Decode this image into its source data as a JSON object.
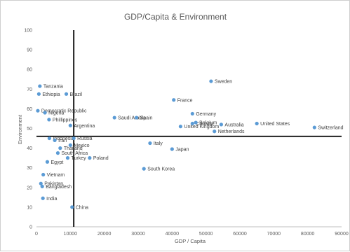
{
  "chart_data": {
    "type": "scatter",
    "title": "GDP/Capita & Environment",
    "xlabel": "GDP / Capita",
    "ylabel": "Environment",
    "xlim": [
      0,
      90000
    ],
    "ylim": [
      0,
      100
    ],
    "xticks": [
      "0",
      "10000",
      "20000",
      "30000",
      "40000",
      "50000",
      "60000",
      "70000",
      "80000",
      "90000"
    ],
    "yticks": [
      "0",
      "10",
      "20",
      "30",
      "40",
      "50",
      "60",
      "70",
      "80",
      "90",
      "100"
    ],
    "reference_lines": {
      "x": 11000,
      "y": 46
    },
    "grid": false,
    "marker_color": "#5b9bd5",
    "line_color": "#000000",
    "points": [
      {
        "label": "Tanzania",
        "x": 1000,
        "y": 71.5
      },
      {
        "label": "Ethiopia",
        "x": 700,
        "y": 67.5
      },
      {
        "label": "Brazil",
        "x": 8800,
        "y": 67.5
      },
      {
        "label": "Democratic Republic",
        "x": 400,
        "y": 59
      },
      {
        "label": "Nigeria",
        "x": 2500,
        "y": 58
      },
      {
        "label": "Phillippines",
        "x": 3700,
        "y": 54.5
      },
      {
        "label": "Argentina",
        "x": 10000,
        "y": 51.5
      },
      {
        "label": "Indonesia",
        "x": 3800,
        "y": 45
      },
      {
        "label": "Russia",
        "x": 11000,
        "y": 45
      },
      {
        "label": "Iran",
        "x": 5400,
        "y": 44
      },
      {
        "label": "Mexico",
        "x": 10000,
        "y": 41.5
      },
      {
        "label": "Thailand",
        "x": 7000,
        "y": 40
      },
      {
        "label": "South Africa",
        "x": 6300,
        "y": 37.5
      },
      {
        "label": "Turkey",
        "x": 9200,
        "y": 35
      },
      {
        "label": "Poland",
        "x": 15700,
        "y": 35
      },
      {
        "label": "Egypt",
        "x": 3200,
        "y": 33
      },
      {
        "label": "Vietnam",
        "x": 2000,
        "y": 26.5
      },
      {
        "label": "Pakistan",
        "x": 1300,
        "y": 22
      },
      {
        "label": "Bangladesh",
        "x": 1700,
        "y": 20.5
      },
      {
        "label": "India",
        "x": 1900,
        "y": 14.5
      },
      {
        "label": "China",
        "x": 10500,
        "y": 10
      },
      {
        "label": "Saudi Arabia",
        "x": 23000,
        "y": 55.5
      },
      {
        "label": "Spain",
        "x": 29500,
        "y": 55.5
      },
      {
        "label": "South Korea",
        "x": 31700,
        "y": 29.5
      },
      {
        "label": "Italy",
        "x": 33500,
        "y": 42.5
      },
      {
        "label": "Japan",
        "x": 40000,
        "y": 39.5
      },
      {
        "label": "France",
        "x": 40500,
        "y": 64.5
      },
      {
        "label": "United Kingdom",
        "x": 42500,
        "y": 51
      },
      {
        "label": "Germany",
        "x": 46000,
        "y": 57.5
      },
      {
        "label": "Canada",
        "x": 46000,
        "y": 52.5
      },
      {
        "label": "Belgium",
        "x": 47000,
        "y": 53
      },
      {
        "label": "Sweden",
        "x": 51500,
        "y": 74
      },
      {
        "label": "Netherlands",
        "x": 52500,
        "y": 48.5
      },
      {
        "label": "Australia",
        "x": 54500,
        "y": 52
      },
      {
        "label": "United States",
        "x": 65000,
        "y": 52.5
      },
      {
        "label": "Switzerland",
        "x": 82000,
        "y": 50.5
      }
    ]
  }
}
